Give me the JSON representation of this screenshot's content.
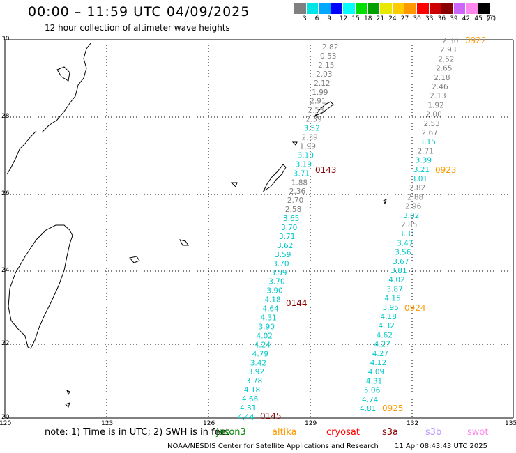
{
  "title": "00:00 – 11:59 UTC 04/09/2025",
  "subtitle": "12 hour collection of altimeter wave heights",
  "legend": {
    "colors": [
      "#808080",
      "#00e5e5",
      "#00a8ff",
      "#0000ff",
      "#00ffff",
      "#00e000",
      "#00a000",
      "#e8e800",
      "#ffcc00",
      "#ff9900",
      "#ff0000",
      "#cc0000",
      "#880000",
      "#cc66ff",
      "#ff88ee",
      "#000000"
    ],
    "labels": [
      "3",
      "6",
      "9",
      "12",
      "15",
      "18",
      "21",
      "24",
      "27",
      "30",
      "33",
      "36",
      "39",
      "42",
      "45",
      "70",
      "(ft)"
    ]
  },
  "axes": {
    "lat_labels": [
      "30",
      "28",
      "26",
      "24",
      "22",
      "20"
    ],
    "lon_labels": [
      "120",
      "123",
      "126",
      "129",
      "132",
      "135"
    ]
  },
  "tracks": [
    {
      "name": "track-left",
      "labels": [
        {
          "v": "2.82",
          "c": "#808080"
        },
        {
          "v": "0.53",
          "c": "#808080"
        },
        {
          "v": "2.15",
          "c": "#808080"
        },
        {
          "v": "2.03",
          "c": "#808080"
        },
        {
          "v": "2.12",
          "c": "#808080"
        },
        {
          "v": "1.99",
          "c": "#808080"
        },
        {
          "v": "2.91",
          "c": "#808080"
        },
        {
          "v": "2.53",
          "c": "#808080"
        },
        {
          "v": "2.39",
          "c": "#808080"
        },
        {
          "v": "3.52",
          "c": "#00c8c8"
        },
        {
          "v": "2.39",
          "c": "#808080"
        },
        {
          "v": "1.99",
          "c": "#808080"
        },
        {
          "v": "3.10",
          "c": "#00c8c8"
        },
        {
          "v": "3.19",
          "c": "#00c8c8"
        },
        {
          "v": "3.71",
          "c": "#00c8c8"
        },
        {
          "v": "1.88",
          "c": "#808080"
        },
        {
          "v": "2.36",
          "c": "#808080"
        },
        {
          "v": "2.70",
          "c": "#808080"
        },
        {
          "v": "2.58",
          "c": "#808080"
        },
        {
          "v": "3.65",
          "c": "#00c8c8"
        },
        {
          "v": "3.70",
          "c": "#00c8c8"
        },
        {
          "v": "3.71",
          "c": "#00c8c8"
        },
        {
          "v": "3.62",
          "c": "#00c8c8"
        },
        {
          "v": "3.59",
          "c": "#00c8c8"
        },
        {
          "v": "3.70",
          "c": "#00c8c8"
        },
        {
          "v": "3.59",
          "c": "#00c8c8"
        },
        {
          "v": "3.70",
          "c": "#00c8c8"
        },
        {
          "v": "3.90",
          "c": "#00c8c8"
        },
        {
          "v": "4.18",
          "c": "#00c8c8"
        },
        {
          "v": "4.64",
          "c": "#00c8c8"
        },
        {
          "v": "4.31",
          "c": "#00c8c8"
        },
        {
          "v": "3.90",
          "c": "#00c8c8"
        },
        {
          "v": "4.02",
          "c": "#00c8c8"
        },
        {
          "v": "4.24",
          "c": "#00c8c8"
        },
        {
          "v": "4.79",
          "c": "#00c8c8"
        },
        {
          "v": "3.42",
          "c": "#00c8c8"
        },
        {
          "v": "3.92",
          "c": "#00c8c8"
        },
        {
          "v": "3.78",
          "c": "#00c8c8"
        },
        {
          "v": "4.18",
          "c": "#00c8c8"
        },
        {
          "v": "4.66",
          "c": "#00c8c8"
        },
        {
          "v": "4.31",
          "c": "#00c8c8"
        },
        {
          "v": "4.44",
          "c": "#00c8c8"
        }
      ]
    },
    {
      "name": "track-right",
      "labels": [
        {
          "v": "2.30",
          "c": "#808080"
        },
        {
          "v": "2.93",
          "c": "#808080"
        },
        {
          "v": "2.52",
          "c": "#808080"
        },
        {
          "v": "2.65",
          "c": "#808080"
        },
        {
          "v": "2.18",
          "c": "#808080"
        },
        {
          "v": "2.46",
          "c": "#808080"
        },
        {
          "v": "2.13",
          "c": "#808080"
        },
        {
          "v": "1.92",
          "c": "#808080"
        },
        {
          "v": "2.00",
          "c": "#808080"
        },
        {
          "v": "2.53",
          "c": "#808080"
        },
        {
          "v": "2.67",
          "c": "#808080"
        },
        {
          "v": "3.15",
          "c": "#00c8c8"
        },
        {
          "v": "2.71",
          "c": "#808080"
        },
        {
          "v": "3.39",
          "c": "#00c8c8"
        },
        {
          "v": "3.21",
          "c": "#00c8c8"
        },
        {
          "v": "3.01",
          "c": "#00c8c8"
        },
        {
          "v": "2.82",
          "c": "#808080"
        },
        {
          "v": "2.88",
          "c": "#808080"
        },
        {
          "v": "2.96",
          "c": "#808080"
        },
        {
          "v": "3.02",
          "c": "#00c8c8"
        },
        {
          "v": "2.85",
          "c": "#808080"
        },
        {
          "v": "3.31",
          "c": "#00c8c8"
        },
        {
          "v": "3.47",
          "c": "#00c8c8"
        },
        {
          "v": "3.56",
          "c": "#00c8c8"
        },
        {
          "v": "3.67",
          "c": "#00c8c8"
        },
        {
          "v": "3.81",
          "c": "#00c8c8"
        },
        {
          "v": "4.02",
          "c": "#00c8c8"
        },
        {
          "v": "3.87",
          "c": "#00c8c8"
        },
        {
          "v": "4.15",
          "c": "#00c8c8"
        },
        {
          "v": "3.95",
          "c": "#00c8c8"
        },
        {
          "v": "4.18",
          "c": "#00c8c8"
        },
        {
          "v": "4.32",
          "c": "#00c8c8"
        },
        {
          "v": "4.62",
          "c": "#00c8c8"
        },
        {
          "v": "4.27",
          "c": "#00c8c8"
        },
        {
          "v": "4.27",
          "c": "#00c8c8"
        },
        {
          "v": "4.12",
          "c": "#00c8c8"
        },
        {
          "v": "4.09",
          "c": "#00c8c8"
        },
        {
          "v": "4.31",
          "c": "#00c8c8"
        },
        {
          "v": "5.06",
          "c": "#00c8c8"
        },
        {
          "v": "4.74",
          "c": "#00c8c8"
        },
        {
          "v": "4.81",
          "c": "#00c8c8"
        }
      ]
    }
  ],
  "time_labels": [
    {
      "v": "0143",
      "c": "#880000"
    },
    {
      "v": "0144",
      "c": "#880000"
    },
    {
      "v": "0145",
      "c": "#880000"
    },
    {
      "v": "0922",
      "c": "#ff9900"
    },
    {
      "v": "0923",
      "c": "#ff9900"
    },
    {
      "v": "0924",
      "c": "#ff9900"
    },
    {
      "v": "0925",
      "c": "#ff9900"
    }
  ],
  "note": "note:  1) Time is in UTC;  2) SWH is in feet",
  "satellites": [
    {
      "name": "jason3",
      "c": "#008800"
    },
    {
      "name": "altika",
      "c": "#ff9900"
    },
    {
      "name": "cryosat",
      "c": "#ff0000"
    },
    {
      "name": "s3a",
      "c": "#880000"
    },
    {
      "name": "s3b",
      "c": "#bb99ff"
    },
    {
      "name": "swot",
      "c": "#ff88ee"
    }
  ],
  "credit": "NOAA/NESDIS Center for Satellite Applications and Research",
  "timestamp": "11 Apr 08:43:43 UTC 2025"
}
